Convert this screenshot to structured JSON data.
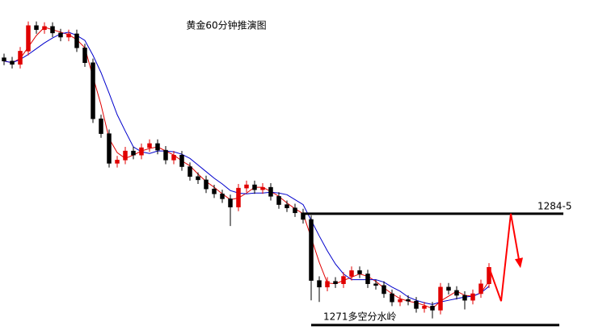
{
  "chart_data": {
    "type": "candlestick",
    "title": "黄金60分钟推演图",
    "ylim": [
      1270.4,
      1310.4
    ],
    "up_color": "#e00000",
    "down_color": "#000000",
    "candles": [
      [
        1303.4,
        1303.9,
        1302.5,
        1303.0
      ],
      [
        1303.0,
        1303.5,
        1302.1,
        1302.6
      ],
      [
        1302.6,
        1304.7,
        1302.1,
        1304.2
      ],
      [
        1304.2,
        1307.8,
        1303.7,
        1307.3
      ],
      [
        1307.3,
        1307.8,
        1306.3,
        1306.8
      ],
      [
        1306.8,
        1307.7,
        1306.3,
        1307.2
      ],
      [
        1307.2,
        1307.7,
        1305.9,
        1306.4
      ],
      [
        1306.4,
        1306.9,
        1305.4,
        1305.9
      ],
      [
        1305.9,
        1306.8,
        1305.4,
        1306.3
      ],
      [
        1306.3,
        1306.8,
        1304.1,
        1304.6
      ],
      [
        1304.6,
        1305.1,
        1302.3,
        1302.8
      ],
      [
        1302.8,
        1303.3,
        1295.5,
        1296.0
      ],
      [
        1296.0,
        1296.5,
        1293.7,
        1294.2
      ],
      [
        1294.2,
        1294.7,
        1290.1,
        1290.6
      ],
      [
        1290.6,
        1291.5,
        1290.1,
        1291.0
      ],
      [
        1291.0,
        1292.6,
        1290.5,
        1292.1
      ],
      [
        1292.1,
        1292.6,
        1291.1,
        1291.6
      ],
      [
        1291.6,
        1293.0,
        1291.1,
        1292.5
      ],
      [
        1292.5,
        1293.5,
        1292.0,
        1293.0
      ],
      [
        1293.0,
        1293.5,
        1291.7,
        1292.2
      ],
      [
        1292.2,
        1292.7,
        1290.5,
        1291.0
      ],
      [
        1291.0,
        1292.1,
        1290.5,
        1291.6
      ],
      [
        1291.6,
        1292.1,
        1289.7,
        1290.2
      ],
      [
        1290.2,
        1290.7,
        1288.5,
        1289.0
      ],
      [
        1289.0,
        1289.5,
        1288.1,
        1288.6
      ],
      [
        1288.6,
        1289.1,
        1287.0,
        1287.5
      ],
      [
        1287.5,
        1288.0,
        1286.4,
        1286.9
      ],
      [
        1286.9,
        1287.4,
        1285.8,
        1286.3
      ],
      [
        1286.3,
        1286.8,
        1283.0,
        1285.3
      ],
      [
        1285.3,
        1288.1,
        1284.8,
        1287.6
      ],
      [
        1287.6,
        1288.5,
        1287.1,
        1288.0
      ],
      [
        1288.0,
        1288.5,
        1286.9,
        1287.4
      ],
      [
        1287.4,
        1288.2,
        1286.9,
        1287.7
      ],
      [
        1287.7,
        1288.2,
        1286.1,
        1286.6
      ],
      [
        1286.6,
        1287.1,
        1285.1,
        1285.6
      ],
      [
        1285.6,
        1286.1,
        1284.7,
        1285.2
      ],
      [
        1285.2,
        1285.7,
        1284.1,
        1284.6
      ],
      [
        1284.6,
        1285.1,
        1283.3,
        1283.8
      ],
      [
        1283.8,
        1284.3,
        1274.0,
        1276.4
      ],
      [
        1276.4,
        1276.9,
        1273.8,
        1275.6
      ],
      [
        1275.6,
        1276.8,
        1275.1,
        1276.3
      ],
      [
        1276.3,
        1276.8,
        1275.5,
        1276.0
      ],
      [
        1276.0,
        1277.4,
        1275.5,
        1276.9
      ],
      [
        1276.9,
        1278.1,
        1276.4,
        1277.6
      ],
      [
        1277.6,
        1278.1,
        1276.7,
        1277.2
      ],
      [
        1277.2,
        1277.7,
        1275.5,
        1276.0
      ],
      [
        1276.0,
        1276.5,
        1275.3,
        1275.8
      ],
      [
        1275.8,
        1276.3,
        1274.3,
        1274.8
      ],
      [
        1274.8,
        1275.3,
        1273.3,
        1273.8
      ],
      [
        1273.8,
        1274.6,
        1273.3,
        1274.1
      ],
      [
        1274.1,
        1274.6,
        1273.4,
        1273.9
      ],
      [
        1273.9,
        1274.4,
        1272.5,
        1273.0
      ],
      [
        1273.0,
        1273.8,
        1272.5,
        1273.3
      ],
      [
        1273.3,
        1273.8,
        1271.8,
        1272.8
      ],
      [
        1272.8,
        1276.1,
        1272.3,
        1275.6
      ],
      [
        1275.6,
        1276.1,
        1274.7,
        1275.2
      ],
      [
        1275.2,
        1275.7,
        1274.1,
        1274.6
      ],
      [
        1274.6,
        1275.1,
        1272.9,
        1274.0
      ],
      [
        1274.0,
        1275.3,
        1273.5,
        1274.8
      ],
      [
        1274.8,
        1276.5,
        1274.3,
        1276.0
      ],
      [
        1276.0,
        1278.5,
        1275.5,
        1278.0
      ]
    ],
    "lines": [
      {
        "color": "#e00000",
        "values": [
          1303.0,
          1302.8,
          1303.3,
          1304.7,
          1306.1,
          1307.1,
          1306.8,
          1306.5,
          1306.2,
          1305.6,
          1304.6,
          1301.1,
          1297.7,
          1293.6,
          1291.9,
          1291.2,
          1291.6,
          1292.1,
          1292.4,
          1292.6,
          1292.1,
          1291.6,
          1290.9,
          1290.3,
          1289.3,
          1288.4,
          1287.7,
          1286.9,
          1286.2,
          1286.4,
          1287.0,
          1287.7,
          1287.7,
          1287.2,
          1286.6,
          1285.8,
          1285.1,
          1284.5,
          1281.6,
          1278.6,
          1276.1,
          1276.0,
          1276.4,
          1276.8,
          1277.2,
          1276.9,
          1276.3,
          1275.5,
          1274.8,
          1274.2,
          1273.9,
          1273.7,
          1273.4,
          1273.0,
          1273.9,
          1274.5,
          1275.1,
          1274.6,
          1274.5,
          1274.9,
          1276.3
        ]
      },
      {
        "color": "#0000cc",
        "values": [
          1303.0,
          1302.8,
          1303.2,
          1303.8,
          1304.5,
          1305.2,
          1305.8,
          1306.3,
          1306.5,
          1306.1,
          1305.5,
          1303.7,
          1301.6,
          1299.1,
          1296.5,
          1294.5,
          1292.6,
          1292.0,
          1291.8,
          1292.1,
          1292.1,
          1292.0,
          1291.7,
          1291.2,
          1290.4,
          1289.6,
          1288.8,
          1288.1,
          1287.3,
          1287.0,
          1286.9,
          1287.0,
          1287.0,
          1287.1,
          1287.0,
          1286.8,
          1286.2,
          1285.6,
          1283.7,
          1281.8,
          1280.0,
          1278.4,
          1277.2,
          1276.5,
          1276.5,
          1276.5,
          1276.5,
          1276.2,
          1275.6,
          1275.1,
          1274.4,
          1274.0,
          1273.7,
          1273.5,
          1273.8,
          1274.0,
          1274.2,
          1274.4,
          1274.5,
          1274.9,
          1275.7
        ]
      }
    ],
    "levels": [
      {
        "value": 1284.5,
        "label": "1284-5"
      },
      {
        "value": 1271,
        "label": "1271多空分水岭"
      }
    ],
    "projection": [
      1273.9,
      1284.5,
      1278.4
    ],
    "projection_color": "#ff0000"
  }
}
